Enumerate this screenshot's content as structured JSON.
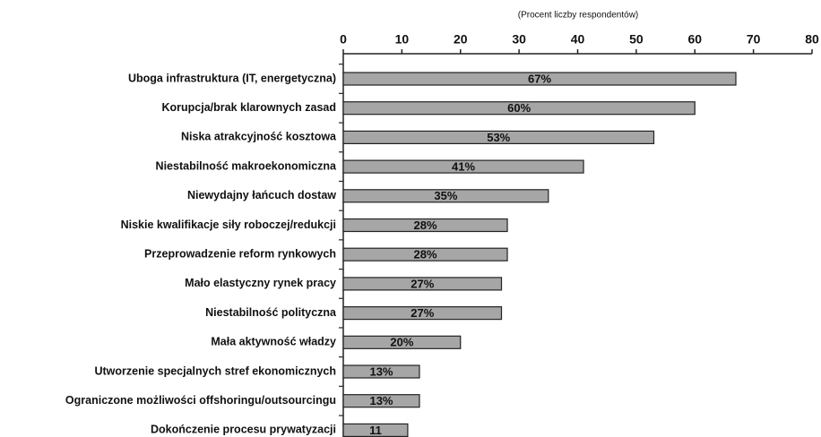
{
  "chart_data": {
    "type": "barh",
    "axis_label": "(Procent liczby respondentów)",
    "categories": [
      "Uboga infrastruktura (IT, energetyczna)",
      "Korupcja/brak klarownych zasad",
      "Niska atrakcyjność kosztowa",
      "Niestabilność makroekonomiczna",
      "Niewydajny łańcuch dostaw",
      "Niskie kwalifikacje siły roboczej/redukcji",
      "Przeprowadzenie reform rynkowych",
      "Mało elastyczny rynek pracy",
      "Niestabilność polityczna",
      "Mała aktywność władzy",
      "Utworzenie specjalnych stref ekonomicznych",
      "Ograniczone możliwości offshoringu/outsourcingu",
      "Dokończenie procesu prywatyzacji"
    ],
    "values": [
      67,
      60,
      53,
      41,
      35,
      28,
      28,
      27,
      27,
      20,
      13,
      13,
      11
    ],
    "value_labels": [
      "67%",
      "60%",
      "53%",
      "41%",
      "35%",
      "28%",
      "28%",
      "27%",
      "27%",
      "20%",
      "13%",
      "13%",
      "11"
    ],
    "color": "#a6a6a6",
    "xlim": [
      0,
      80
    ],
    "xticks": [
      0,
      10,
      20,
      30,
      40,
      50,
      60,
      70,
      80
    ]
  }
}
